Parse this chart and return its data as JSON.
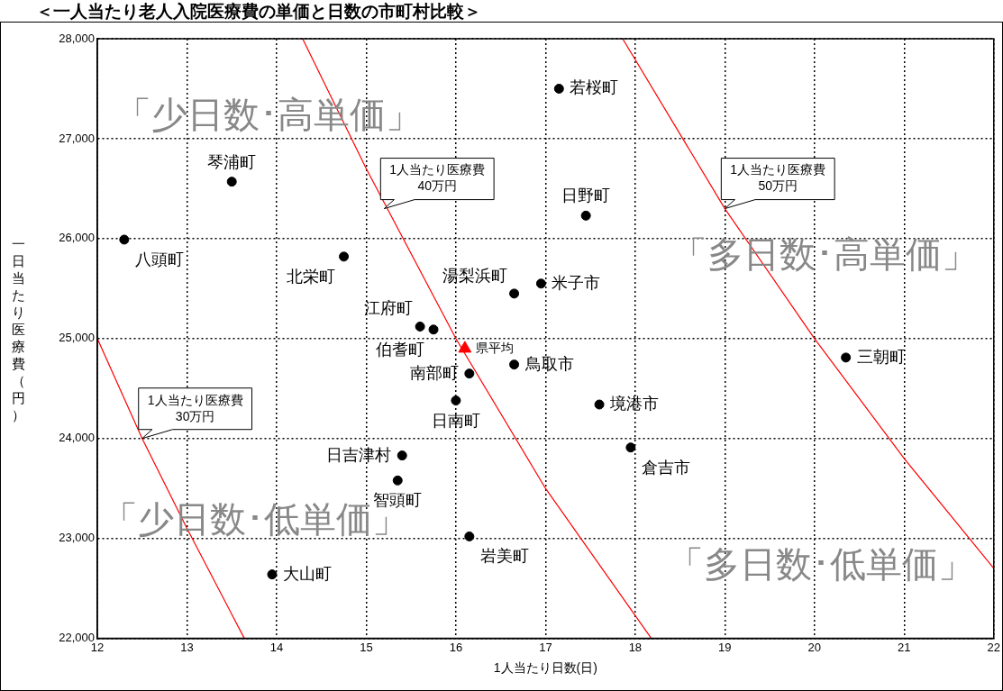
{
  "chart_data": {
    "type": "scatter",
    "title": "＜一人当たり老人入院医療費の単価と日数の市町村比較＞",
    "xlabel": "1人当たり日数(日)",
    "ylabel": "一日当たり医療費（円）",
    "xlim": [
      12,
      22
    ],
    "xticks": [
      12,
      13,
      14,
      15,
      16,
      17,
      18,
      19,
      20,
      21,
      22
    ],
    "ylim": [
      22000,
      28000
    ],
    "yticks": [
      {
        "value": 22000,
        "label": "22,000"
      },
      {
        "value": 23000,
        "label": "23,000"
      },
      {
        "value": 24000,
        "label": "24,000"
      },
      {
        "value": 25000,
        "label": "25,000"
      },
      {
        "value": 26000,
        "label": "26,000"
      },
      {
        "value": 27000,
        "label": "27,000"
      },
      {
        "value": 28000,
        "label": "28,000"
      }
    ],
    "grid": true,
    "legend": false,
    "marker": "circle",
    "series": [
      {
        "color": "#000000",
        "x": [
          17.15,
          13.5,
          12.3,
          17.45,
          14.75,
          16.65,
          16.95,
          15.6,
          15.75,
          16.15,
          16.65,
          16.0,
          17.6,
          20.35,
          17.95,
          15.4,
          15.35,
          16.15,
          13.95
        ],
        "values": [
          27500,
          26570,
          25990,
          26230,
          25820,
          25450,
          25550,
          25120,
          25090,
          24650,
          24740,
          24380,
          24340,
          24810,
          23910,
          23830,
          23580,
          23020,
          22640
        ],
        "value_labels": [
          "若桜町",
          "琴浦町",
          "八頭町",
          "日野町",
          "北栄町",
          "湯梨浜町",
          "米子市",
          "江府町",
          "伯耆町",
          "南部町",
          "鳥取市",
          "日南町",
          "境港市",
          "三朝町",
          "倉吉市",
          "日吉津村",
          "智頭町",
          "岩美町",
          "大山町"
        ]
      },
      {
        "name": "県平均",
        "color": "#ff0000",
        "marker": "triangle",
        "x": [
          16.1
        ],
        "values": [
          24900
        ]
      },
      {
        "type": "line",
        "color": "#ff0000",
        "marker": "none",
        "x": [
          12,
          12.5,
          13,
          13.64
        ],
        "values": [
          25000,
          24000,
          23100,
          22000
        ]
      },
      {
        "type": "line",
        "color": "#ff0000",
        "marker": "none",
        "x": [
          14.29,
          15,
          16,
          17,
          18.18
        ],
        "values": [
          28000,
          26700,
          25000,
          23500,
          22000
        ]
      },
      {
        "type": "line",
        "color": "#ff0000",
        "marker": "none",
        "x": [
          17.86,
          19,
          20,
          21,
          22
        ],
        "values": [
          28000,
          26300,
          25000,
          23800,
          22700
        ]
      }
    ],
    "annotations": [
      "「少日数･高単価」",
      "「多日数･高単価」",
      "「少日数･低単価」",
      "「多日数･低単価」",
      {
        "text": "1人当たり医療費\n30万円",
        "x": 12.5,
        "y": 24000
      },
      {
        "text": "1人当たり医療費\n40万円",
        "x": 15.2,
        "y": 26300
      },
      {
        "text": "1人当たり医療費\n50万円",
        "x": 19,
        "y": 26300
      }
    ]
  }
}
